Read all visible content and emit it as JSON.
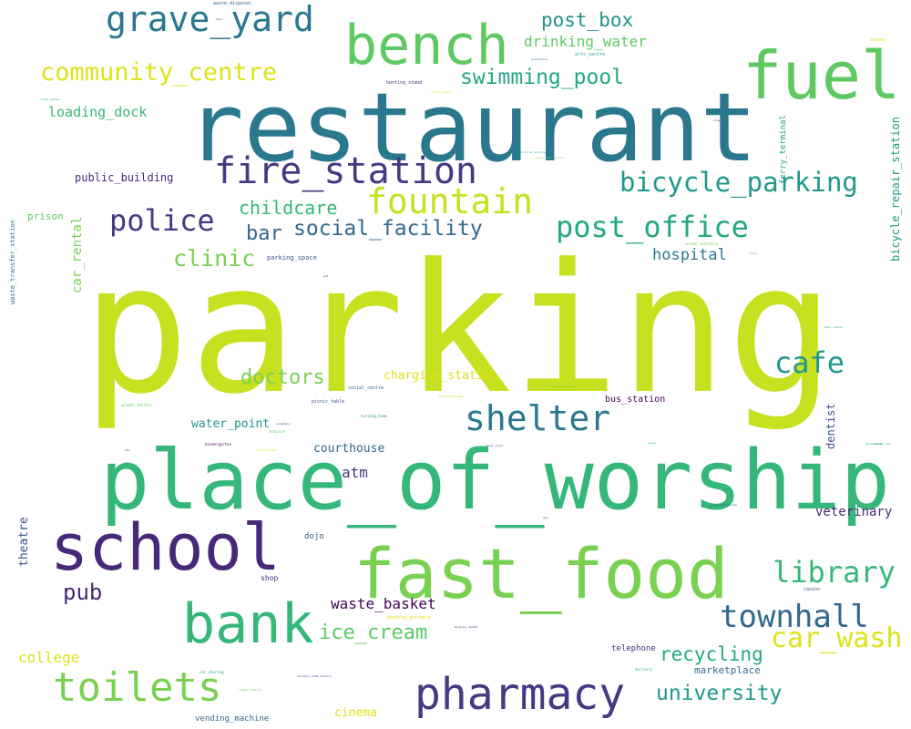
{
  "palette": {
    "lime": "#c7e020",
    "yellow": "#dde318",
    "light_green": "#7ad151",
    "green": "#5ec962",
    "mid_green": "#35b779",
    "teal_green": "#22a884",
    "teal": "#1f988b",
    "blue_teal": "#21918c",
    "steel": "#2a788e",
    "blue": "#31688e",
    "indigo": "#3b528b",
    "violet": "#443983",
    "purple": "#482878",
    "dark_purple": "#440154"
  },
  "words": [
    {
      "text": "parking",
      "color": "#c7e020"
    },
    {
      "text": "restaurant",
      "color": "#2a788e"
    },
    {
      "text": "place_of_worship",
      "color": "#35b779"
    },
    {
      "text": "fast_food",
      "color": "#7ad151"
    },
    {
      "text": "school",
      "color": "#482878"
    },
    {
      "text": "fuel",
      "color": "#5ec962"
    },
    {
      "text": "bench",
      "color": "#5ec962"
    },
    {
      "text": "bank",
      "color": "#35b779"
    },
    {
      "text": "pharmacy",
      "color": "#443983"
    },
    {
      "text": "toilets",
      "color": "#7ad151"
    },
    {
      "text": "fire_station",
      "color": "#443983"
    },
    {
      "text": "shelter",
      "color": "#2a788e"
    },
    {
      "text": "grave_yard",
      "color": "#2a788e"
    },
    {
      "text": "fountain",
      "color": "#c7e020"
    },
    {
      "text": "townhall",
      "color": "#31688e"
    },
    {
      "text": "cafe",
      "color": "#1f988b"
    },
    {
      "text": "police",
      "color": "#443983"
    },
    {
      "text": "post_office",
      "color": "#22a884"
    },
    {
      "text": "library",
      "color": "#35b779"
    },
    {
      "text": "car_wash",
      "color": "#dde318"
    },
    {
      "text": "bicycle_parking",
      "color": "#1f988b"
    },
    {
      "text": "community_centre",
      "color": "#dde318"
    },
    {
      "text": "swimming_pool",
      "color": "#22a884"
    },
    {
      "text": "social_facility",
      "color": "#31688e"
    },
    {
      "text": "university",
      "color": "#1f988b"
    },
    {
      "text": "clinic",
      "color": "#7ad151"
    },
    {
      "text": "doctors",
      "color": "#7ad151"
    },
    {
      "text": "ice_cream",
      "color": "#5ec962"
    },
    {
      "text": "recycling",
      "color": "#22a884"
    },
    {
      "text": "post_box",
      "color": "#21918c"
    },
    {
      "text": "childcare",
      "color": "#35b779"
    },
    {
      "text": "bar",
      "color": "#31688e"
    },
    {
      "text": "pub",
      "color": "#482878"
    },
    {
      "text": "waste_basket",
      "color": "#440154"
    },
    {
      "text": "drinking_water",
      "color": "#5ec962"
    },
    {
      "text": "hospital",
      "color": "#2a788e"
    },
    {
      "text": "loading_dock",
      "color": "#35b779"
    },
    {
      "text": "atm",
      "color": "#443983"
    },
    {
      "text": "college",
      "color": "#dde318"
    },
    {
      "text": "charging_station",
      "color": "#dde318"
    },
    {
      "text": "water_point",
      "color": "#1f988b"
    },
    {
      "text": "courthouse",
      "color": "#31688e"
    },
    {
      "text": "veterinary",
      "color": "#482878"
    },
    {
      "text": "cinema",
      "color": "#dde318"
    },
    {
      "text": "public_building",
      "color": "#482878"
    },
    {
      "text": "prison",
      "color": "#5ec962"
    },
    {
      "text": "car_rental",
      "color": "#7ad151"
    },
    {
      "text": "theatre",
      "color": "#3b528b"
    },
    {
      "text": "dentist",
      "color": "#3b528b"
    },
    {
      "text": "bus_station",
      "color": "#440154"
    },
    {
      "text": "marketplace",
      "color": "#31688e"
    },
    {
      "text": "telephone",
      "color": "#482878"
    },
    {
      "text": "dojo",
      "color": "#3b528b"
    },
    {
      "text": "shop",
      "color": "#482878"
    },
    {
      "text": "vending_machine",
      "color": "#31688e"
    },
    {
      "text": "parking_space",
      "color": "#3b528b"
    },
    {
      "text": "bicycle_repair_station",
      "color": "#1f988b"
    },
    {
      "text": "ferry_terminal",
      "color": "#1f988b"
    },
    {
      "text": "waste_transfer_station",
      "color": "#2a788e"
    },
    {
      "text": "hunting_stand",
      "color": "#482878"
    },
    {
      "text": "waste_disposal",
      "color": "#31688e"
    },
    {
      "text": "arts_centre",
      "color": "#22a884"
    },
    {
      "text": "social_centre",
      "color": "#31688e"
    },
    {
      "text": "picnic_table",
      "color": "#3b528b"
    },
    {
      "text": "nursing_home",
      "color": "#1f988b"
    },
    {
      "text": "kindergarten",
      "color": "#440154"
    },
    {
      "text": "parking_entrance",
      "color": "#dde318"
    },
    {
      "text": "casino",
      "color": "#3b528b"
    },
    {
      "text": "animal_shelter",
      "color": "#5ec962"
    },
    {
      "text": "animal_boarding",
      "color": "#7ad151"
    },
    {
      "text": "hospice",
      "color": "#5ec962"
    },
    {
      "text": "shower",
      "color": "#dde318"
    },
    {
      "text": "clock",
      "color": "#22a884"
    },
    {
      "text": "stage",
      "color": "#3b528b"
    },
    {
      "text": "trash_rental",
      "color": "#22a884"
    },
    {
      "text": "photobooth",
      "color": "#1f988b"
    },
    {
      "text": "public_bookcase",
      "color": "#c7e020"
    },
    {
      "text": "reception_desk",
      "color": "#7ad151"
    },
    {
      "text": "bicycle_rental",
      "color": "#440154"
    },
    {
      "text": "car_sharing",
      "color": "#22a884"
    },
    {
      "text": "sanitary_dump_station",
      "color": "#3b528b"
    },
    {
      "text": "mortuary",
      "color": "#35b779"
    },
    {
      "text": "information_sign",
      "color": "#3b528b"
    },
    {
      "text": "pet",
      "color": "#482878"
    },
    {
      "text": "neighbour",
      "color": "#3b528b"
    },
    {
      "text": "conference_centre",
      "color": "#7ad151"
    },
    {
      "text": "boat_rental",
      "color": "#1f988b"
    },
    {
      "text": "plantation",
      "color": "#31688e"
    },
    {
      "text": "food_court",
      "color": "#482878"
    },
    {
      "text": "bbq",
      "color": "#3b528b"
    },
    {
      "text": "taxi",
      "color": "#3b528b"
    },
    {
      "text": "ranger_station",
      "color": "#5ec962"
    },
    {
      "text": "boat_storage",
      "color": "#dde318"
    },
    {
      "text": "motorcycle_parking",
      "color": "#22a884"
    },
    {
      "text": "events_venue",
      "color": "#dde318"
    },
    {
      "text": "sauna",
      "color": "#35b779"
    },
    {
      "text": "gym",
      "color": "#482878"
    },
    {
      "text": "letter_box",
      "color": "#22a884"
    }
  ]
}
